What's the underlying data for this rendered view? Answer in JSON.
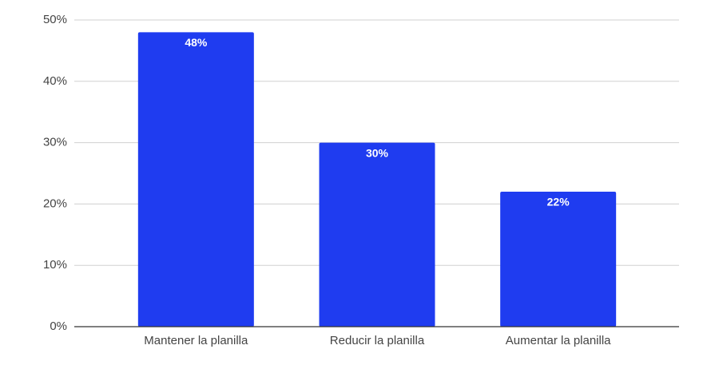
{
  "chart_data": {
    "type": "bar",
    "categories": [
      "Mantener la planilla",
      "Reducir la planilla",
      "Aumentar la planilla"
    ],
    "values": [
      48,
      30,
      22
    ],
    "value_labels": [
      "48%",
      "30%",
      "22%"
    ],
    "color": "#1f3cf0",
    "ylim": [
      0,
      50
    ],
    "yticks": [
      {
        "value": 0,
        "label": "0%"
      },
      {
        "value": 10,
        "label": "10%"
      },
      {
        "value": 20,
        "label": "20%"
      },
      {
        "value": 30,
        "label": "30%"
      },
      {
        "value": 40,
        "label": "40%"
      },
      {
        "value": 50,
        "label": "50%"
      }
    ],
    "grid": true
  }
}
